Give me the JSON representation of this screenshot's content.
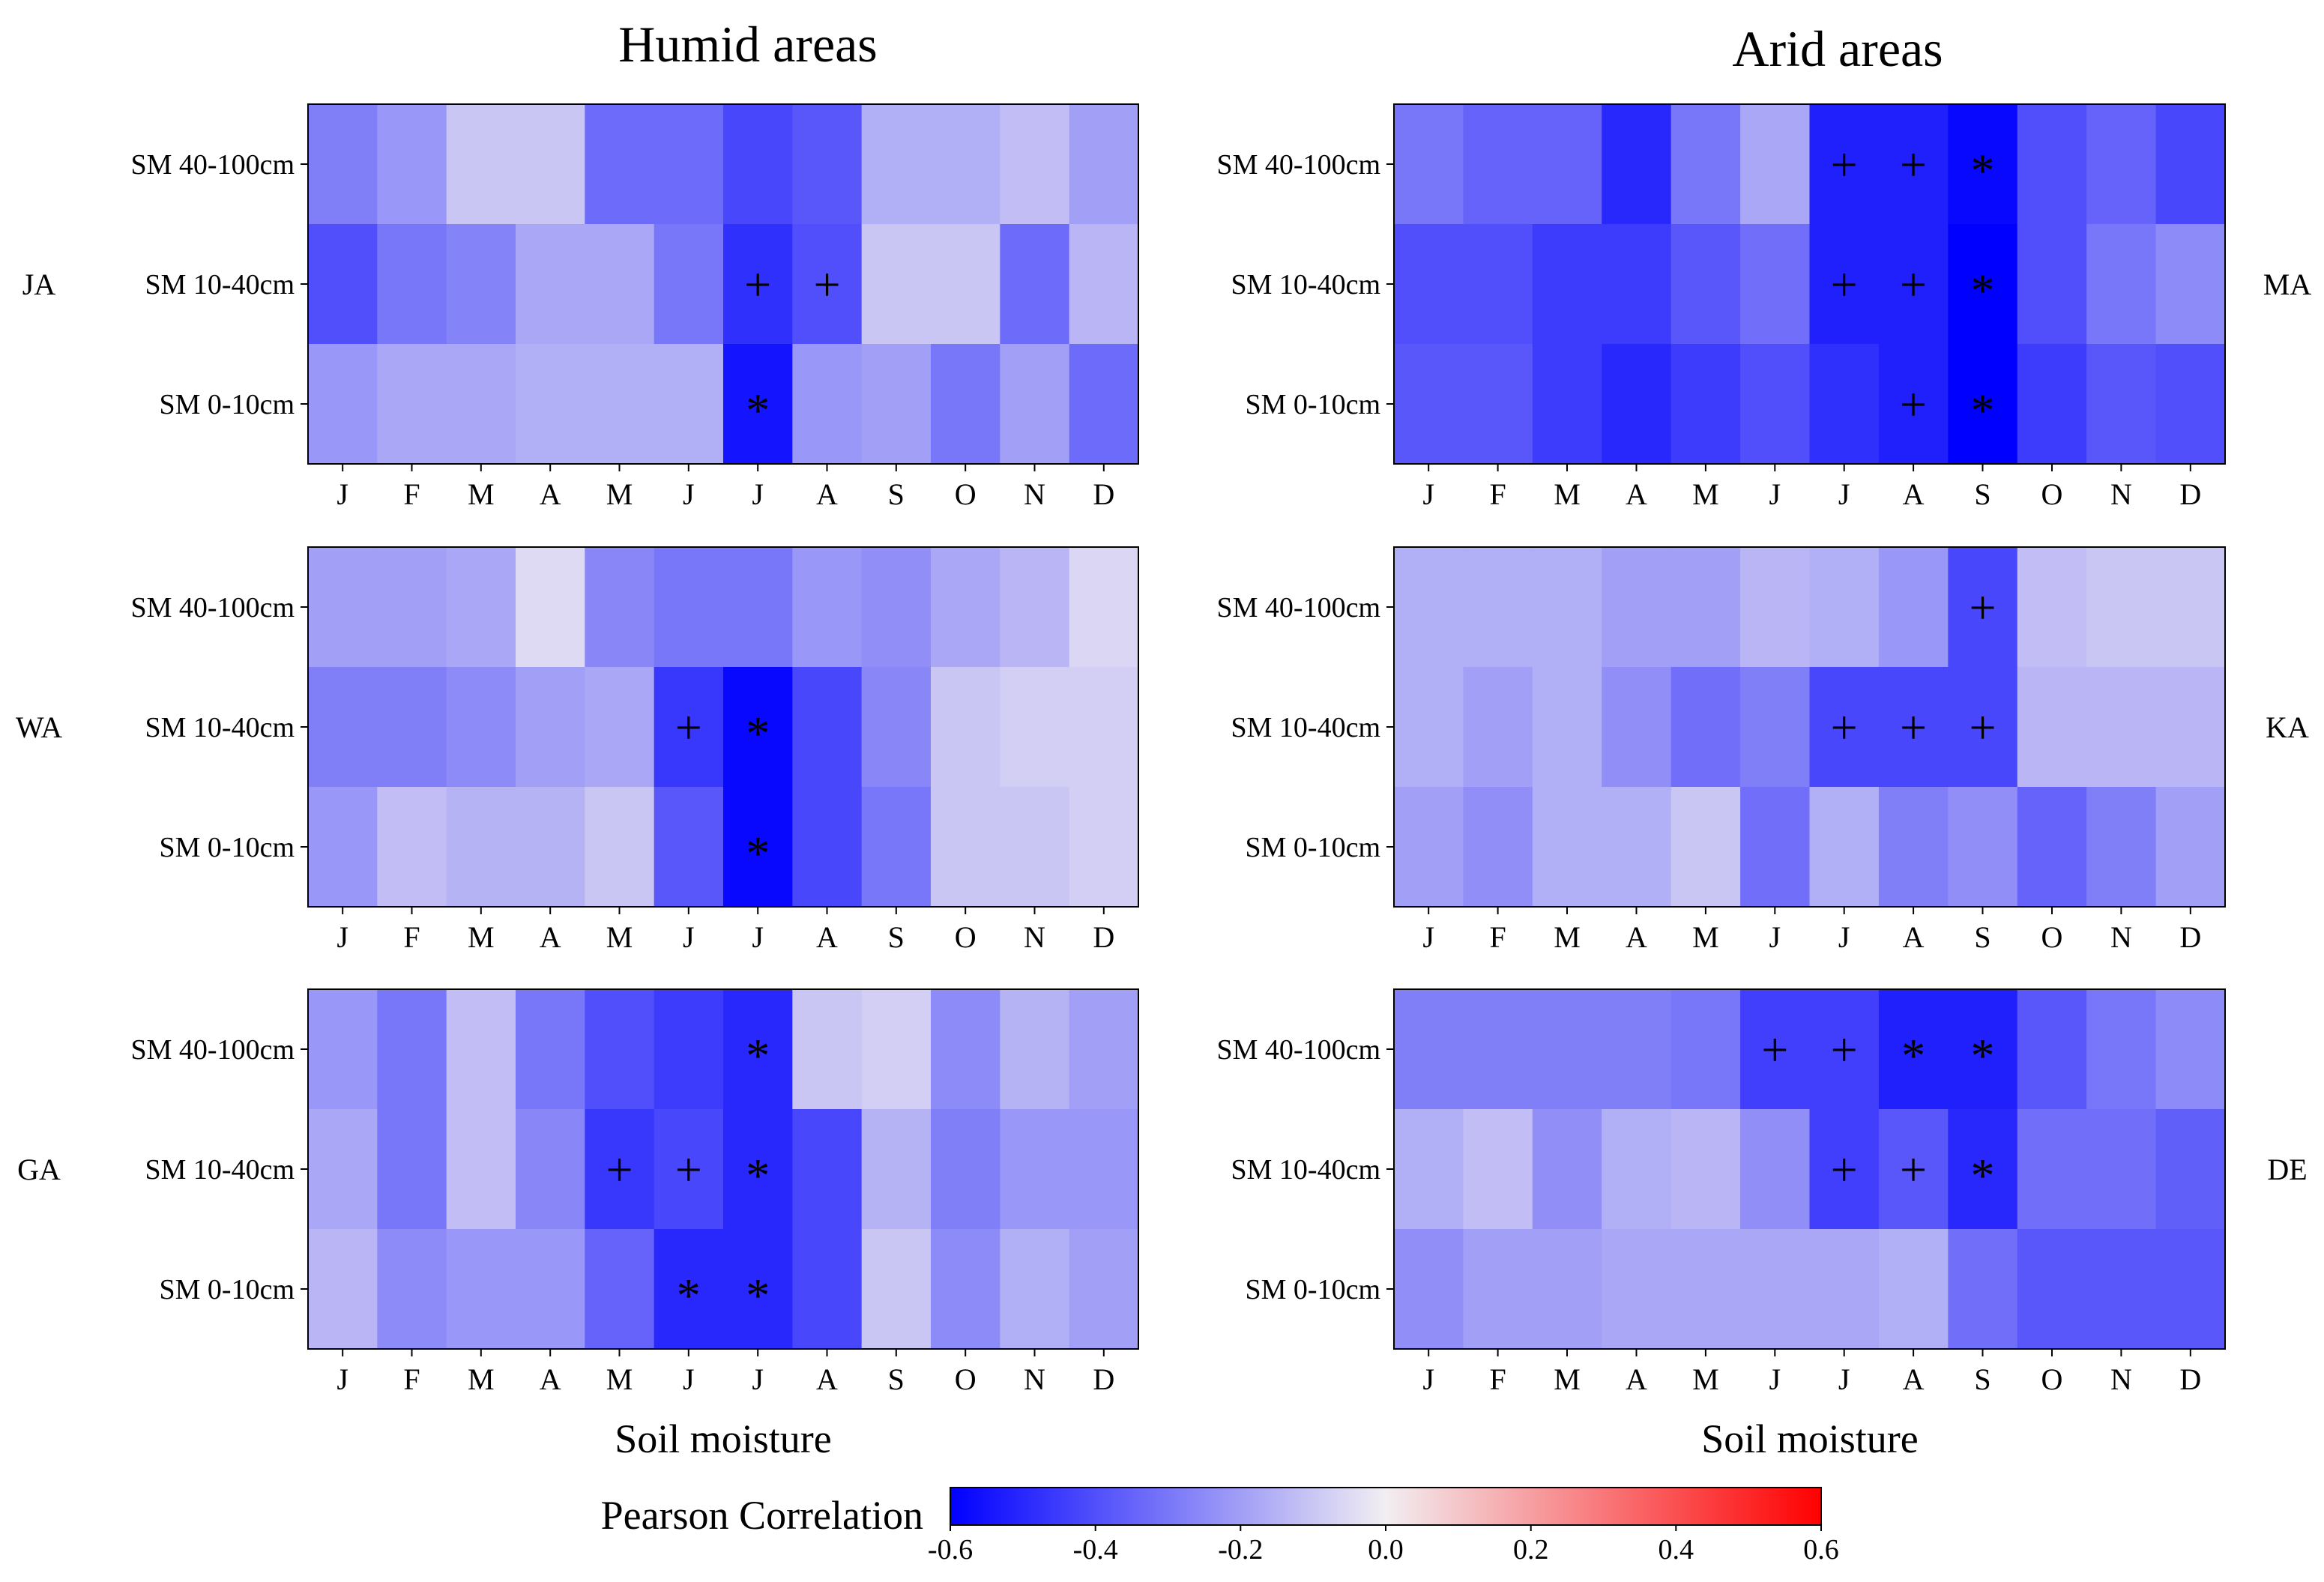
{
  "figure": {
    "titles": {
      "humid": "Humid areas",
      "arid": "Arid areas"
    },
    "xlabels": {
      "humid": "Soil moisture",
      "arid": "Soil moisture"
    },
    "colorbar": {
      "title": "Pearson Correlation",
      "ticks": [
        "-0.6",
        "-0.4",
        "-0.2",
        "0.0",
        "0.2",
        "0.4",
        "0.6"
      ],
      "low_color": "#0000ff",
      "mid_color": "#f2eef2",
      "high_color": "#ff0000"
    },
    "plus_symbol": "+",
    "star_symbol": "*"
  },
  "chart_data": [
    {
      "type": "heatmap",
      "group": "Humid areas",
      "region": "JA",
      "months": [
        "J",
        "F",
        "M",
        "A",
        "M",
        "J",
        "J",
        "A",
        "S",
        "O",
        "N",
        "D"
      ],
      "rows": [
        "SM 40-100cm",
        "SM 10-40cm",
        "SM 0-10cm"
      ],
      "values": [
        [
          -0.28,
          -0.22,
          -0.1,
          -0.1,
          -0.33,
          -0.33,
          -0.42,
          -0.38,
          -0.16,
          -0.16,
          -0.12,
          -0.2
        ],
        [
          -0.4,
          -0.3,
          -0.27,
          -0.18,
          -0.18,
          -0.3,
          -0.48,
          -0.4,
          -0.1,
          -0.1,
          -0.33,
          -0.14
        ],
        [
          -0.22,
          -0.18,
          -0.18,
          -0.16,
          -0.16,
          -0.16,
          -0.55,
          -0.22,
          -0.2,
          -0.3,
          -0.2,
          -0.33
        ]
      ],
      "markers": [
        [
          1,
          6,
          "+"
        ],
        [
          1,
          7,
          "+"
        ],
        [
          2,
          6,
          "*"
        ]
      ],
      "xlabel": "Soil moisture",
      "zlim": [
        -0.6,
        0.6
      ]
    },
    {
      "type": "heatmap",
      "group": "Humid areas",
      "region": "WA",
      "months": [
        "J",
        "F",
        "M",
        "A",
        "M",
        "J",
        "J",
        "A",
        "S",
        "O",
        "N",
        "D"
      ],
      "rows": [
        "SM 40-100cm",
        "SM 10-40cm",
        "SM 0-10cm"
      ],
      "values": [
        [
          -0.2,
          -0.2,
          -0.18,
          -0.05,
          -0.26,
          -0.3,
          -0.3,
          -0.22,
          -0.24,
          -0.18,
          -0.14,
          -0.06
        ],
        [
          -0.28,
          -0.28,
          -0.25,
          -0.2,
          -0.18,
          -0.46,
          -0.58,
          -0.42,
          -0.26,
          -0.1,
          -0.08,
          -0.08
        ],
        [
          -0.22,
          -0.12,
          -0.15,
          -0.15,
          -0.1,
          -0.38,
          -0.58,
          -0.42,
          -0.3,
          -0.1,
          -0.1,
          -0.08
        ]
      ],
      "markers": [
        [
          1,
          5,
          "+"
        ],
        [
          1,
          6,
          "*"
        ],
        [
          2,
          6,
          "*"
        ]
      ],
      "xlabel": "Soil moisture",
      "zlim": [
        -0.6,
        0.6
      ]
    },
    {
      "type": "heatmap",
      "group": "Humid areas",
      "region": "GA",
      "months": [
        "J",
        "F",
        "M",
        "A",
        "M",
        "J",
        "J",
        "A",
        "S",
        "O",
        "N",
        "D"
      ],
      "rows": [
        "SM 40-100cm",
        "SM 10-40cm",
        "SM 0-10cm"
      ],
      "values": [
        [
          -0.22,
          -0.3,
          -0.12,
          -0.3,
          -0.4,
          -0.45,
          -0.5,
          -0.1,
          -0.08,
          -0.25,
          -0.15,
          -0.2
        ],
        [
          -0.18,
          -0.3,
          -0.12,
          -0.26,
          -0.46,
          -0.42,
          -0.5,
          -0.42,
          -0.15,
          -0.28,
          -0.22,
          -0.22
        ],
        [
          -0.14,
          -0.25,
          -0.22,
          -0.22,
          -0.35,
          -0.5,
          -0.5,
          -0.42,
          -0.1,
          -0.25,
          -0.16,
          -0.2
        ]
      ],
      "markers": [
        [
          0,
          6,
          "*"
        ],
        [
          1,
          4,
          "+"
        ],
        [
          1,
          5,
          "+"
        ],
        [
          1,
          6,
          "*"
        ],
        [
          2,
          5,
          "*"
        ],
        [
          2,
          6,
          "*"
        ]
      ],
      "xlabel": "Soil moisture",
      "zlim": [
        -0.6,
        0.6
      ]
    },
    {
      "type": "heatmap",
      "group": "Arid areas",
      "region": "MA",
      "months": [
        "J",
        "F",
        "M",
        "A",
        "M",
        "J",
        "J",
        "A",
        "S",
        "O",
        "N",
        "D"
      ],
      "rows": [
        "SM 40-100cm",
        "SM 10-40cm",
        "SM 0-10cm"
      ],
      "values": [
        [
          -0.3,
          -0.35,
          -0.35,
          -0.5,
          -0.3,
          -0.18,
          -0.52,
          -0.52,
          -0.58,
          -0.4,
          -0.35,
          -0.42
        ],
        [
          -0.4,
          -0.4,
          -0.45,
          -0.45,
          -0.38,
          -0.32,
          -0.52,
          -0.52,
          -0.6,
          -0.4,
          -0.3,
          -0.25
        ],
        [
          -0.38,
          -0.38,
          -0.45,
          -0.5,
          -0.45,
          -0.4,
          -0.48,
          -0.52,
          -0.6,
          -0.45,
          -0.38,
          -0.4
        ]
      ],
      "markers": [
        [
          0,
          6,
          "+"
        ],
        [
          0,
          7,
          "+"
        ],
        [
          0,
          8,
          "*"
        ],
        [
          1,
          6,
          "+"
        ],
        [
          1,
          7,
          "+"
        ],
        [
          1,
          8,
          "*"
        ],
        [
          2,
          7,
          "+"
        ],
        [
          2,
          8,
          "*"
        ]
      ],
      "xlabel": "Soil moisture",
      "zlim": [
        -0.6,
        0.6
      ]
    },
    {
      "type": "heatmap",
      "group": "Arid areas",
      "region": "KA",
      "months": [
        "J",
        "F",
        "M",
        "A",
        "M",
        "J",
        "J",
        "A",
        "S",
        "O",
        "N",
        "D"
      ],
      "rows": [
        "SM 40-100cm",
        "SM 10-40cm",
        "SM 0-10cm"
      ],
      "values": [
        [
          -0.16,
          -0.16,
          -0.16,
          -0.2,
          -0.2,
          -0.14,
          -0.16,
          -0.22,
          -0.42,
          -0.12,
          -0.1,
          -0.1
        ],
        [
          -0.16,
          -0.2,
          -0.16,
          -0.24,
          -0.32,
          -0.28,
          -0.42,
          -0.42,
          -0.42,
          -0.14,
          -0.14,
          -0.14
        ],
        [
          -0.2,
          -0.24,
          -0.16,
          -0.16,
          -0.1,
          -0.32,
          -0.16,
          -0.28,
          -0.24,
          -0.35,
          -0.28,
          -0.2
        ]
      ],
      "markers": [
        [
          0,
          8,
          "+"
        ],
        [
          1,
          6,
          "+"
        ],
        [
          1,
          7,
          "+"
        ],
        [
          1,
          8,
          "+"
        ]
      ],
      "xlabel": "Soil moisture",
      "zlim": [
        -0.6,
        0.6
      ]
    },
    {
      "type": "heatmap",
      "group": "Arid areas",
      "region": "DE",
      "months": [
        "J",
        "F",
        "M",
        "A",
        "M",
        "J",
        "J",
        "A",
        "S",
        "O",
        "N",
        "D"
      ],
      "rows": [
        "SM 40-100cm",
        "SM 10-40cm",
        "SM 0-10cm"
      ],
      "values": [
        [
          -0.28,
          -0.28,
          -0.28,
          -0.28,
          -0.3,
          -0.44,
          -0.44,
          -0.52,
          -0.52,
          -0.38,
          -0.3,
          -0.25
        ],
        [
          -0.16,
          -0.12,
          -0.24,
          -0.16,
          -0.14,
          -0.24,
          -0.44,
          -0.38,
          -0.5,
          -0.32,
          -0.32,
          -0.36
        ],
        [
          -0.24,
          -0.2,
          -0.2,
          -0.18,
          -0.18,
          -0.18,
          -0.18,
          -0.16,
          -0.32,
          -0.38,
          -0.38,
          -0.38
        ]
      ],
      "markers": [
        [
          0,
          5,
          "+"
        ],
        [
          0,
          6,
          "+"
        ],
        [
          0,
          7,
          "*"
        ],
        [
          0,
          8,
          "*"
        ],
        [
          1,
          6,
          "+"
        ],
        [
          1,
          7,
          "+"
        ],
        [
          1,
          8,
          "*"
        ]
      ],
      "xlabel": "Soil moisture",
      "zlim": [
        -0.6,
        0.6
      ]
    }
  ]
}
